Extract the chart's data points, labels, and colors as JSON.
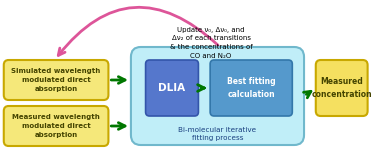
{
  "bg_color": "#ffffff",
  "yellow_box_color": "#f5e87a",
  "yellow_box_edge": "#c8a800",
  "cyan_box_color": "#c0eef8",
  "cyan_box_edge": "#70b8cc",
  "blue_box_color": "#5577cc",
  "blue_box_edge": "#3355aa",
  "blue2_box_color": "#5599cc",
  "blue2_box_edge": "#3377aa",
  "output_box_color": "#f5e060",
  "output_box_edge": "#c8a800",
  "arrow_color": "#007700",
  "feedback_arrow_color": "#dd5599",
  "text_color_dark": "#444400",
  "text_color_white": "#ffffff",
  "text_color_black": "#000000",
  "text_color_blue": "#1a4080",
  "box1_text": "Simulated wavelength\nmodulated direct\nabsorption",
  "box2_text": "Measured wavelength\nmodulated direct\nabsorption",
  "dlia_text": "DLIA",
  "best_fit_text": "Best fitting\ncalculation",
  "bimol_text": "Bi-molecular iterative\nfitting process",
  "output_text": "Measured\nconcentration",
  "feedback_text": "Update ν₀, Δν₀, and\nΔν₂ of each transitions\n& the concentrations of\nCO and N₂O",
  "figsize": [
    3.78,
    1.57
  ],
  "dpi": 100
}
